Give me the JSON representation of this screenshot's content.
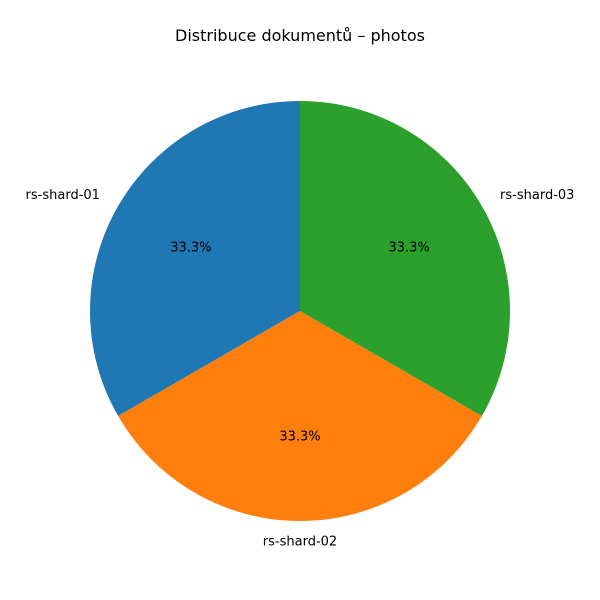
{
  "chart_data": {
    "type": "pie",
    "title": "Distribuce dokumentů – photos",
    "categories": [
      "rs-shard-01",
      "rs-shard-02",
      "rs-shard-03"
    ],
    "values": [
      1,
      1,
      1
    ],
    "percent_labels": [
      "33.3%",
      "33.3%",
      "33.3%"
    ],
    "colors": [
      "#1f77b4",
      "#ff7f0e",
      "#2ca02c"
    ],
    "start_angle_deg": 90,
    "direction": "counterclockwise",
    "legend": "none"
  }
}
